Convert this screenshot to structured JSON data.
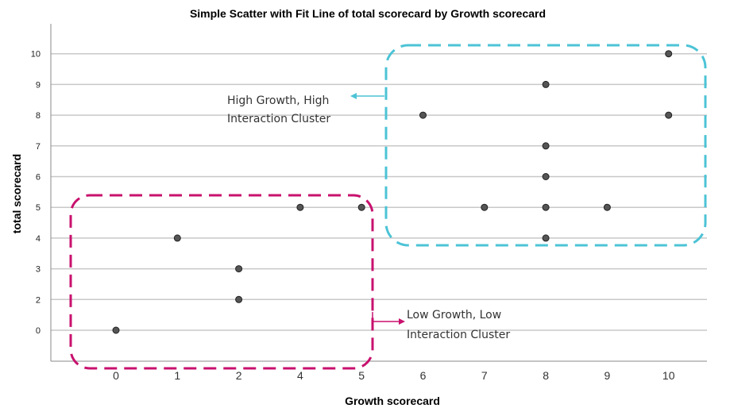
{
  "chart_data": {
    "type": "scatter",
    "title": "Simple Scatter with Fit Line of total scorecard by Growth scorecard",
    "xlabel": "Growth scorecard",
    "ylabel": "total scorecard",
    "x_categories": [
      "0",
      "1",
      "2",
      "4",
      "5",
      "6",
      "7",
      "8",
      "9",
      "10"
    ],
    "y_ticks": [
      "0",
      "2",
      "3",
      "4",
      "5",
      "6",
      "7",
      "8",
      "9",
      "10"
    ],
    "grid": true,
    "points": [
      {
        "x": "0",
        "y": "0"
      },
      {
        "x": "1",
        "y": "4"
      },
      {
        "x": "2",
        "y": "3"
      },
      {
        "x": "2",
        "y": "2"
      },
      {
        "x": "4",
        "y": "5"
      },
      {
        "x": "5",
        "y": "5"
      },
      {
        "x": "6",
        "y": "8"
      },
      {
        "x": "7",
        "y": "5"
      },
      {
        "x": "8",
        "y": "9"
      },
      {
        "x": "8",
        "y": "7"
      },
      {
        "x": "8",
        "y": "6"
      },
      {
        "x": "8",
        "y": "5"
      },
      {
        "x": "8",
        "y": "4"
      },
      {
        "x": "9",
        "y": "5"
      },
      {
        "x": "10",
        "y": "10"
      },
      {
        "x": "10",
        "y": "8"
      }
    ],
    "annotations": [
      {
        "line1": "High Growth, High",
        "line2": "Interaction Cluster",
        "color": "#4cc3d6"
      },
      {
        "line1": "Low Growth, Low",
        "line2": "Interaction Cluster",
        "color": "#c8116e"
      }
    ],
    "colors": {
      "point_fill": "#555555",
      "point_stroke": "#222222",
      "grid": "#c8c8c8"
    }
  }
}
